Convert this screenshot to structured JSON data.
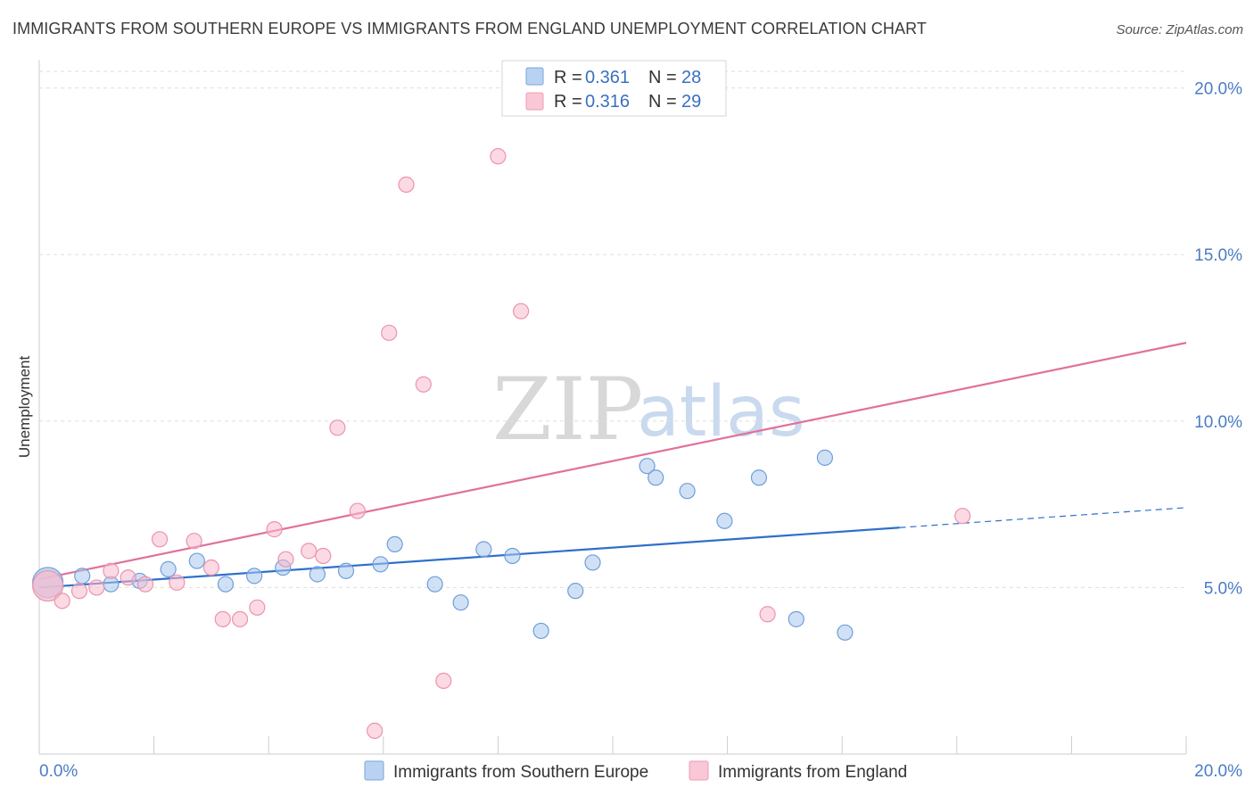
{
  "header": {
    "title": "IMMIGRANTS FROM SOUTHERN EUROPE VS IMMIGRANTS FROM ENGLAND UNEMPLOYMENT CORRELATION CHART",
    "source": "Source: ZipAtlas.com"
  },
  "watermark": {
    "zip": "ZIP",
    "atlas": "atlas"
  },
  "chart_data": {
    "type": "scatter",
    "title": "IMMIGRANTS FROM SOUTHERN EUROPE VS IMMIGRANTS FROM ENGLAND UNEMPLOYMENT CORRELATION CHART",
    "xlabel": "",
    "ylabel": "Unemployment",
    "xlim": [
      0,
      20
    ],
    "ylim": [
      0,
      20.5
    ],
    "x_tick_labels": [
      "0.0%",
      "20.0%"
    ],
    "y_ticks": [
      5,
      10,
      15,
      20
    ],
    "y_tick_labels": [
      "5.0%",
      "10.0%",
      "15.0%",
      "20.0%"
    ],
    "grid": "horizontal dashed",
    "legend": {
      "placement": "top-center",
      "entries": [
        {
          "r_label": "R = ",
          "r_value": "0.361",
          "n_label": "N = ",
          "n_value": "28"
        },
        {
          "r_label": "R = ",
          "r_value": "0.316",
          "n_label": "N = ",
          "n_value": "29"
        }
      ]
    },
    "series": [
      {
        "name": "Immigrants from Southern Europe",
        "color": "#a9c8ee",
        "stroke": "#6f9fd8",
        "line_color": "#2f6fcc",
        "trend": {
          "x0": 0,
          "y0": 5.0,
          "x1": 15.0,
          "y1": 6.8,
          "dash_to_x": 20.0,
          "dash_to_y": 7.4
        },
        "points": [
          {
            "x": 0.15,
            "y": 5.15,
            "big": true
          },
          {
            "x": 0.75,
            "y": 5.35
          },
          {
            "x": 1.25,
            "y": 5.1
          },
          {
            "x": 1.75,
            "y": 5.2
          },
          {
            "x": 2.25,
            "y": 5.55
          },
          {
            "x": 2.75,
            "y": 5.8
          },
          {
            "x": 3.25,
            "y": 5.1
          },
          {
            "x": 3.75,
            "y": 5.35
          },
          {
            "x": 4.25,
            "y": 5.6
          },
          {
            "x": 4.85,
            "y": 5.4
          },
          {
            "x": 5.35,
            "y": 5.5
          },
          {
            "x": 5.95,
            "y": 5.7
          },
          {
            "x": 6.2,
            "y": 6.3
          },
          {
            "x": 6.9,
            "y": 5.1
          },
          {
            "x": 7.35,
            "y": 4.55
          },
          {
            "x": 7.75,
            "y": 6.15
          },
          {
            "x": 8.25,
            "y": 5.95
          },
          {
            "x": 8.75,
            "y": 3.7
          },
          {
            "x": 9.35,
            "y": 4.9
          },
          {
            "x": 9.65,
            "y": 5.75
          },
          {
            "x": 10.6,
            "y": 8.65
          },
          {
            "x": 10.75,
            "y": 8.3
          },
          {
            "x": 11.3,
            "y": 7.9
          },
          {
            "x": 11.95,
            "y": 7.0
          },
          {
            "x": 12.55,
            "y": 8.3
          },
          {
            "x": 13.2,
            "y": 4.05
          },
          {
            "x": 13.7,
            "y": 8.9
          },
          {
            "x": 14.05,
            "y": 3.65
          }
        ]
      },
      {
        "name": "Immigrants from England",
        "color": "#f7bccd",
        "stroke": "#ec93ae",
        "line_color": "#e0719a",
        "trend": {
          "x0": 0,
          "y0": 5.25,
          "x1": 20.0,
          "y1": 12.35
        },
        "points": [
          {
            "x": 0.15,
            "y": 5.05,
            "big": true
          },
          {
            "x": 0.4,
            "y": 4.6
          },
          {
            "x": 0.7,
            "y": 4.9
          },
          {
            "x": 1.0,
            "y": 5.0
          },
          {
            "x": 1.25,
            "y": 5.5
          },
          {
            "x": 1.55,
            "y": 5.3
          },
          {
            "x": 1.85,
            "y": 5.1
          },
          {
            "x": 2.1,
            "y": 6.45
          },
          {
            "x": 2.4,
            "y": 5.15
          },
          {
            "x": 2.7,
            "y": 6.4
          },
          {
            "x": 3.0,
            "y": 5.6
          },
          {
            "x": 3.2,
            "y": 4.05
          },
          {
            "x": 3.5,
            "y": 4.05
          },
          {
            "x": 3.8,
            "y": 4.4
          },
          {
            "x": 4.1,
            "y": 6.75
          },
          {
            "x": 4.3,
            "y": 5.85
          },
          {
            "x": 4.7,
            "y": 6.1
          },
          {
            "x": 4.95,
            "y": 5.95
          },
          {
            "x": 5.2,
            "y": 9.8
          },
          {
            "x": 5.55,
            "y": 7.3
          },
          {
            "x": 5.85,
            "y": 0.7
          },
          {
            "x": 6.1,
            "y": 12.65
          },
          {
            "x": 6.4,
            "y": 17.1
          },
          {
            "x": 6.7,
            "y": 11.1
          },
          {
            "x": 7.05,
            "y": 2.2
          },
          {
            "x": 8.0,
            "y": 17.95
          },
          {
            "x": 8.4,
            "y": 13.3
          },
          {
            "x": 12.7,
            "y": 4.2
          },
          {
            "x": 16.1,
            "y": 7.15
          }
        ]
      }
    ]
  }
}
